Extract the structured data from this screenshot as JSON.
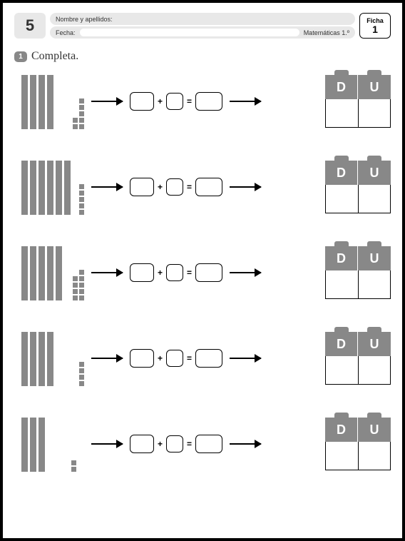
{
  "header": {
    "page_number": "5",
    "name_label": "Nombre y apellidos:",
    "date_label": "Fecha:",
    "subject": "Matemáticas 1.º",
    "ficha_label": "Ficha",
    "ficha_number": "1"
  },
  "instruction": {
    "badge": "1",
    "text": "Completa."
  },
  "colors": {
    "block_gray": "#888888",
    "header_bg": "#e8e8e8",
    "border": "#000000"
  },
  "du_labels": {
    "tens": "D",
    "units": "U"
  },
  "operators": {
    "plus": "+",
    "equals": "="
  },
  "exercises": [
    {
      "tens": 4,
      "ones": 7
    },
    {
      "tens": 6,
      "ones": 5
    },
    {
      "tens": 5,
      "ones": 9
    },
    {
      "tens": 4,
      "ones": 4
    },
    {
      "tens": 3,
      "ones": 2
    }
  ]
}
